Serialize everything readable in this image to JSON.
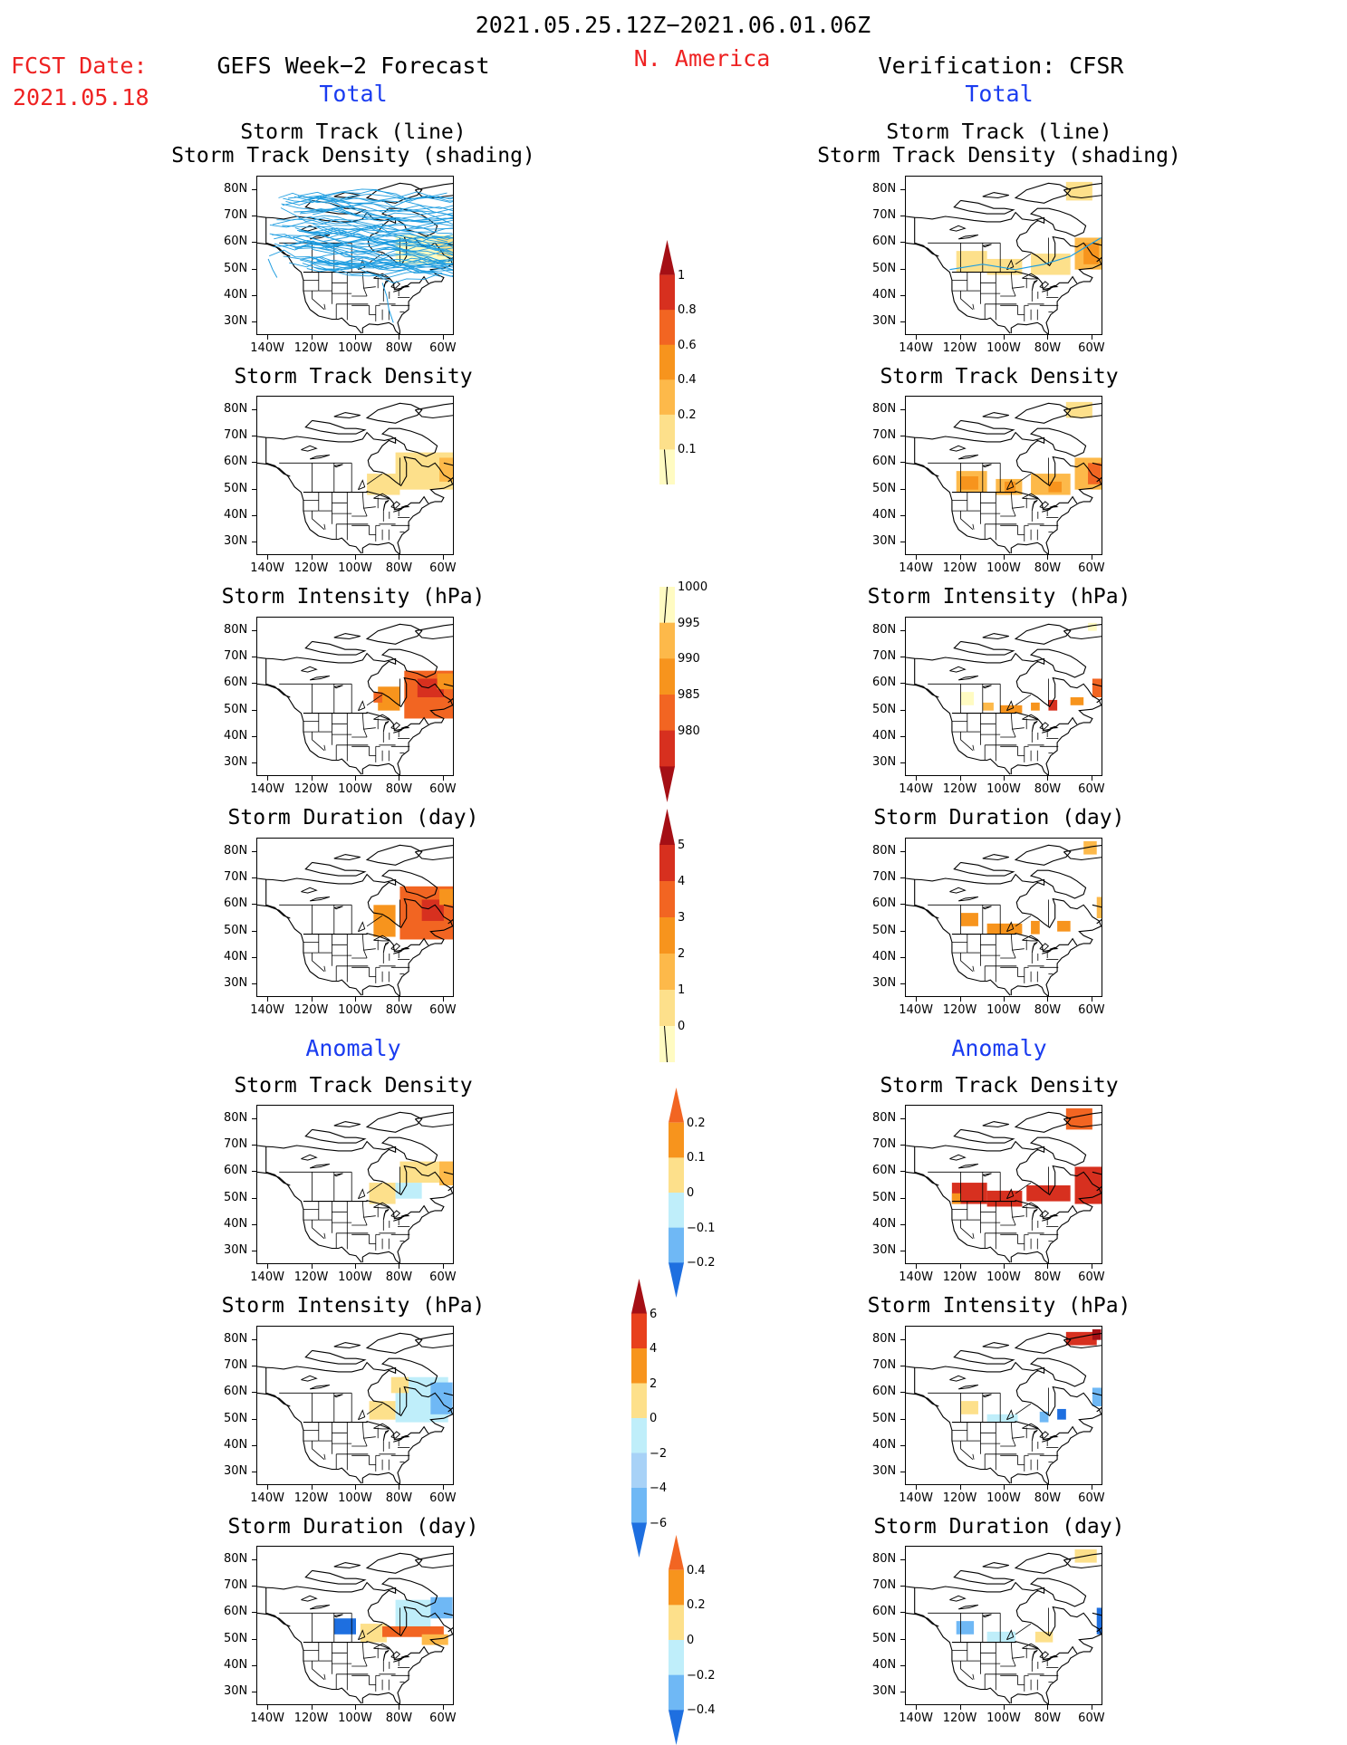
{
  "header": {
    "date_range": "2021.05.25.12Z−2021.06.01.06Z",
    "region": "N. America",
    "fcst_label": "FCST Date:",
    "fcst_date": "2021.05.18",
    "left_title": "GEFS Week−2 Forecast",
    "right_title": "Verification: CFSR",
    "total_label": "Total",
    "anomaly_label": "Anomaly"
  },
  "colors": {
    "accent_red": "#ee2222",
    "accent_blue": "#1a3cf0",
    "track_line": "#1f9de0",
    "land_line": "#000000"
  },
  "axes": {
    "lat_ticks": [
      "80N",
      "70N",
      "60N",
      "50N",
      "40N",
      "30N"
    ],
    "lon_ticks": [
      "140W",
      "120W",
      "100W",
      "80W",
      "60W"
    ]
  },
  "panel_titles": {
    "track": [
      "Storm Track (line)",
      "Storm Track Density (shading)"
    ],
    "density": "Storm Track Density",
    "intensity": "Storm Intensity (hPa)",
    "duration": "Storm Duration (day)"
  },
  "chart_data": [
    {
      "type": "heatmap",
      "id": "left-track",
      "title": "Storm Track (line) / Storm Track Density (shading)",
      "source": "GEFS Week-2 Forecast",
      "lat_range": [
        25,
        85
      ],
      "lon_range": [
        -145,
        -55
      ],
      "layers": [
        "track lines",
        "density shading"
      ]
    },
    {
      "type": "heatmap",
      "id": "right-track",
      "title": "Storm Track (line) / Storm Track Density (shading)",
      "source": "Verification: CFSR",
      "lat_range": [
        25,
        85
      ],
      "lon_range": [
        -145,
        -55
      ]
    },
    {
      "type": "heatmap",
      "id": "left-density",
      "title": "Storm Track Density",
      "source": "GEFS Week-2 Forecast",
      "colorbar": {
        "ticks": [
          0.1,
          0.2,
          0.4,
          0.6,
          0.8,
          1
        ]
      }
    },
    {
      "type": "heatmap",
      "id": "right-density",
      "title": "Storm Track Density",
      "source": "Verification: CFSR",
      "colorbar": {
        "ticks": [
          0.1,
          0.2,
          0.4,
          0.6,
          0.8,
          1
        ]
      }
    },
    {
      "type": "heatmap",
      "id": "left-intensity",
      "title": "Storm Intensity (hPa)",
      "colorbar": {
        "ticks": [
          1000,
          995,
          990,
          985,
          980
        ]
      }
    },
    {
      "type": "heatmap",
      "id": "right-intensity",
      "title": "Storm Intensity (hPa)",
      "colorbar": {
        "ticks": [
          1000,
          995,
          990,
          985,
          980
        ]
      }
    },
    {
      "type": "heatmap",
      "id": "left-duration",
      "title": "Storm Duration (day)",
      "colorbar": {
        "ticks": [
          0,
          1,
          2,
          3,
          4,
          5
        ]
      }
    },
    {
      "type": "heatmap",
      "id": "right-duration",
      "title": "Storm Duration (day)",
      "colorbar": {
        "ticks": [
          0,
          1,
          2,
          3,
          4,
          5
        ]
      }
    },
    {
      "type": "heatmap",
      "id": "left-anom-density",
      "title": "Storm Track Density (Anomaly)",
      "colorbar": {
        "ticks": [
          0.2,
          0.1,
          0,
          -0.1,
          -0.2
        ]
      }
    },
    {
      "type": "heatmap",
      "id": "right-anom-density",
      "title": "Storm Track Density (Anomaly)",
      "colorbar": {
        "ticks": [
          0.2,
          0.1,
          0,
          -0.1,
          -0.2
        ]
      }
    },
    {
      "type": "heatmap",
      "id": "left-anom-intensity",
      "title": "Storm Intensity (hPa) (Anomaly)",
      "colorbar": {
        "ticks": [
          6,
          4,
          2,
          0,
          -2,
          -4,
          -6
        ]
      }
    },
    {
      "type": "heatmap",
      "id": "right-anom-intensity",
      "title": "Storm Intensity (hPa) (Anomaly)",
      "colorbar": {
        "ticks": [
          6,
          4,
          2,
          0,
          -2,
          -4,
          -6
        ]
      }
    },
    {
      "type": "heatmap",
      "id": "left-anom-duration",
      "title": "Storm Duration (day) (Anomaly)",
      "colorbar": {
        "ticks": [
          0.4,
          0.2,
          0,
          -0.2,
          -0.4
        ]
      }
    },
    {
      "type": "heatmap",
      "id": "right-anom-duration",
      "title": "Storm Duration (day) (Anomaly)",
      "colorbar": {
        "ticks": [
          0.4,
          0.2,
          0,
          -0.2,
          -0.4
        ]
      }
    }
  ],
  "colorbars": {
    "density": {
      "labels": [
        "1",
        "0.8",
        "0.6",
        "0.4",
        "0.2",
        "0.1"
      ],
      "colors": [
        "#a50f15",
        "#d7301f",
        "#f26522",
        "#f7941d",
        "#fdb94a",
        "#fde08b",
        "#fffbc2"
      ]
    },
    "intensity": {
      "labels": [
        "1000",
        "995",
        "990",
        "985",
        "980"
      ],
      "colors": [
        "#fffbc2",
        "#fdb94a",
        "#f7941d",
        "#f26522",
        "#d7301f",
        "#a50f15"
      ]
    },
    "duration": {
      "labels": [
        "5",
        "4",
        "3",
        "2",
        "1",
        "0"
      ],
      "colors": [
        "#a50f15",
        "#d7301f",
        "#f26522",
        "#f7941d",
        "#fdb94a",
        "#fde08b",
        "#fffbc2"
      ]
    },
    "anom_density": {
      "labels": [
        "0.2",
        "0.1",
        "0",
        "−0.1",
        "−0.2"
      ],
      "colors": [
        "#f26522",
        "#f7941d",
        "#fde08b",
        "#bfeefa",
        "#6fb8f5",
        "#1e6fe0"
      ]
    },
    "anom_intensity": {
      "labels": [
        "6",
        "4",
        "2",
        "0",
        "−2",
        "−4",
        "−6"
      ],
      "colors": [
        "#a50f15",
        "#e8401c",
        "#f7941d",
        "#fde08b",
        "#bfeefa",
        "#a8d2f7",
        "#6fb8f5",
        "#1e6fe0"
      ]
    },
    "anom_duration": {
      "labels": [
        "0.4",
        "0.2",
        "0",
        "−0.2",
        "−0.4"
      ],
      "colors": [
        "#f26522",
        "#f7941d",
        "#fde08b",
        "#bfeefa",
        "#6fb8f5",
        "#1e6fe0"
      ]
    }
  }
}
